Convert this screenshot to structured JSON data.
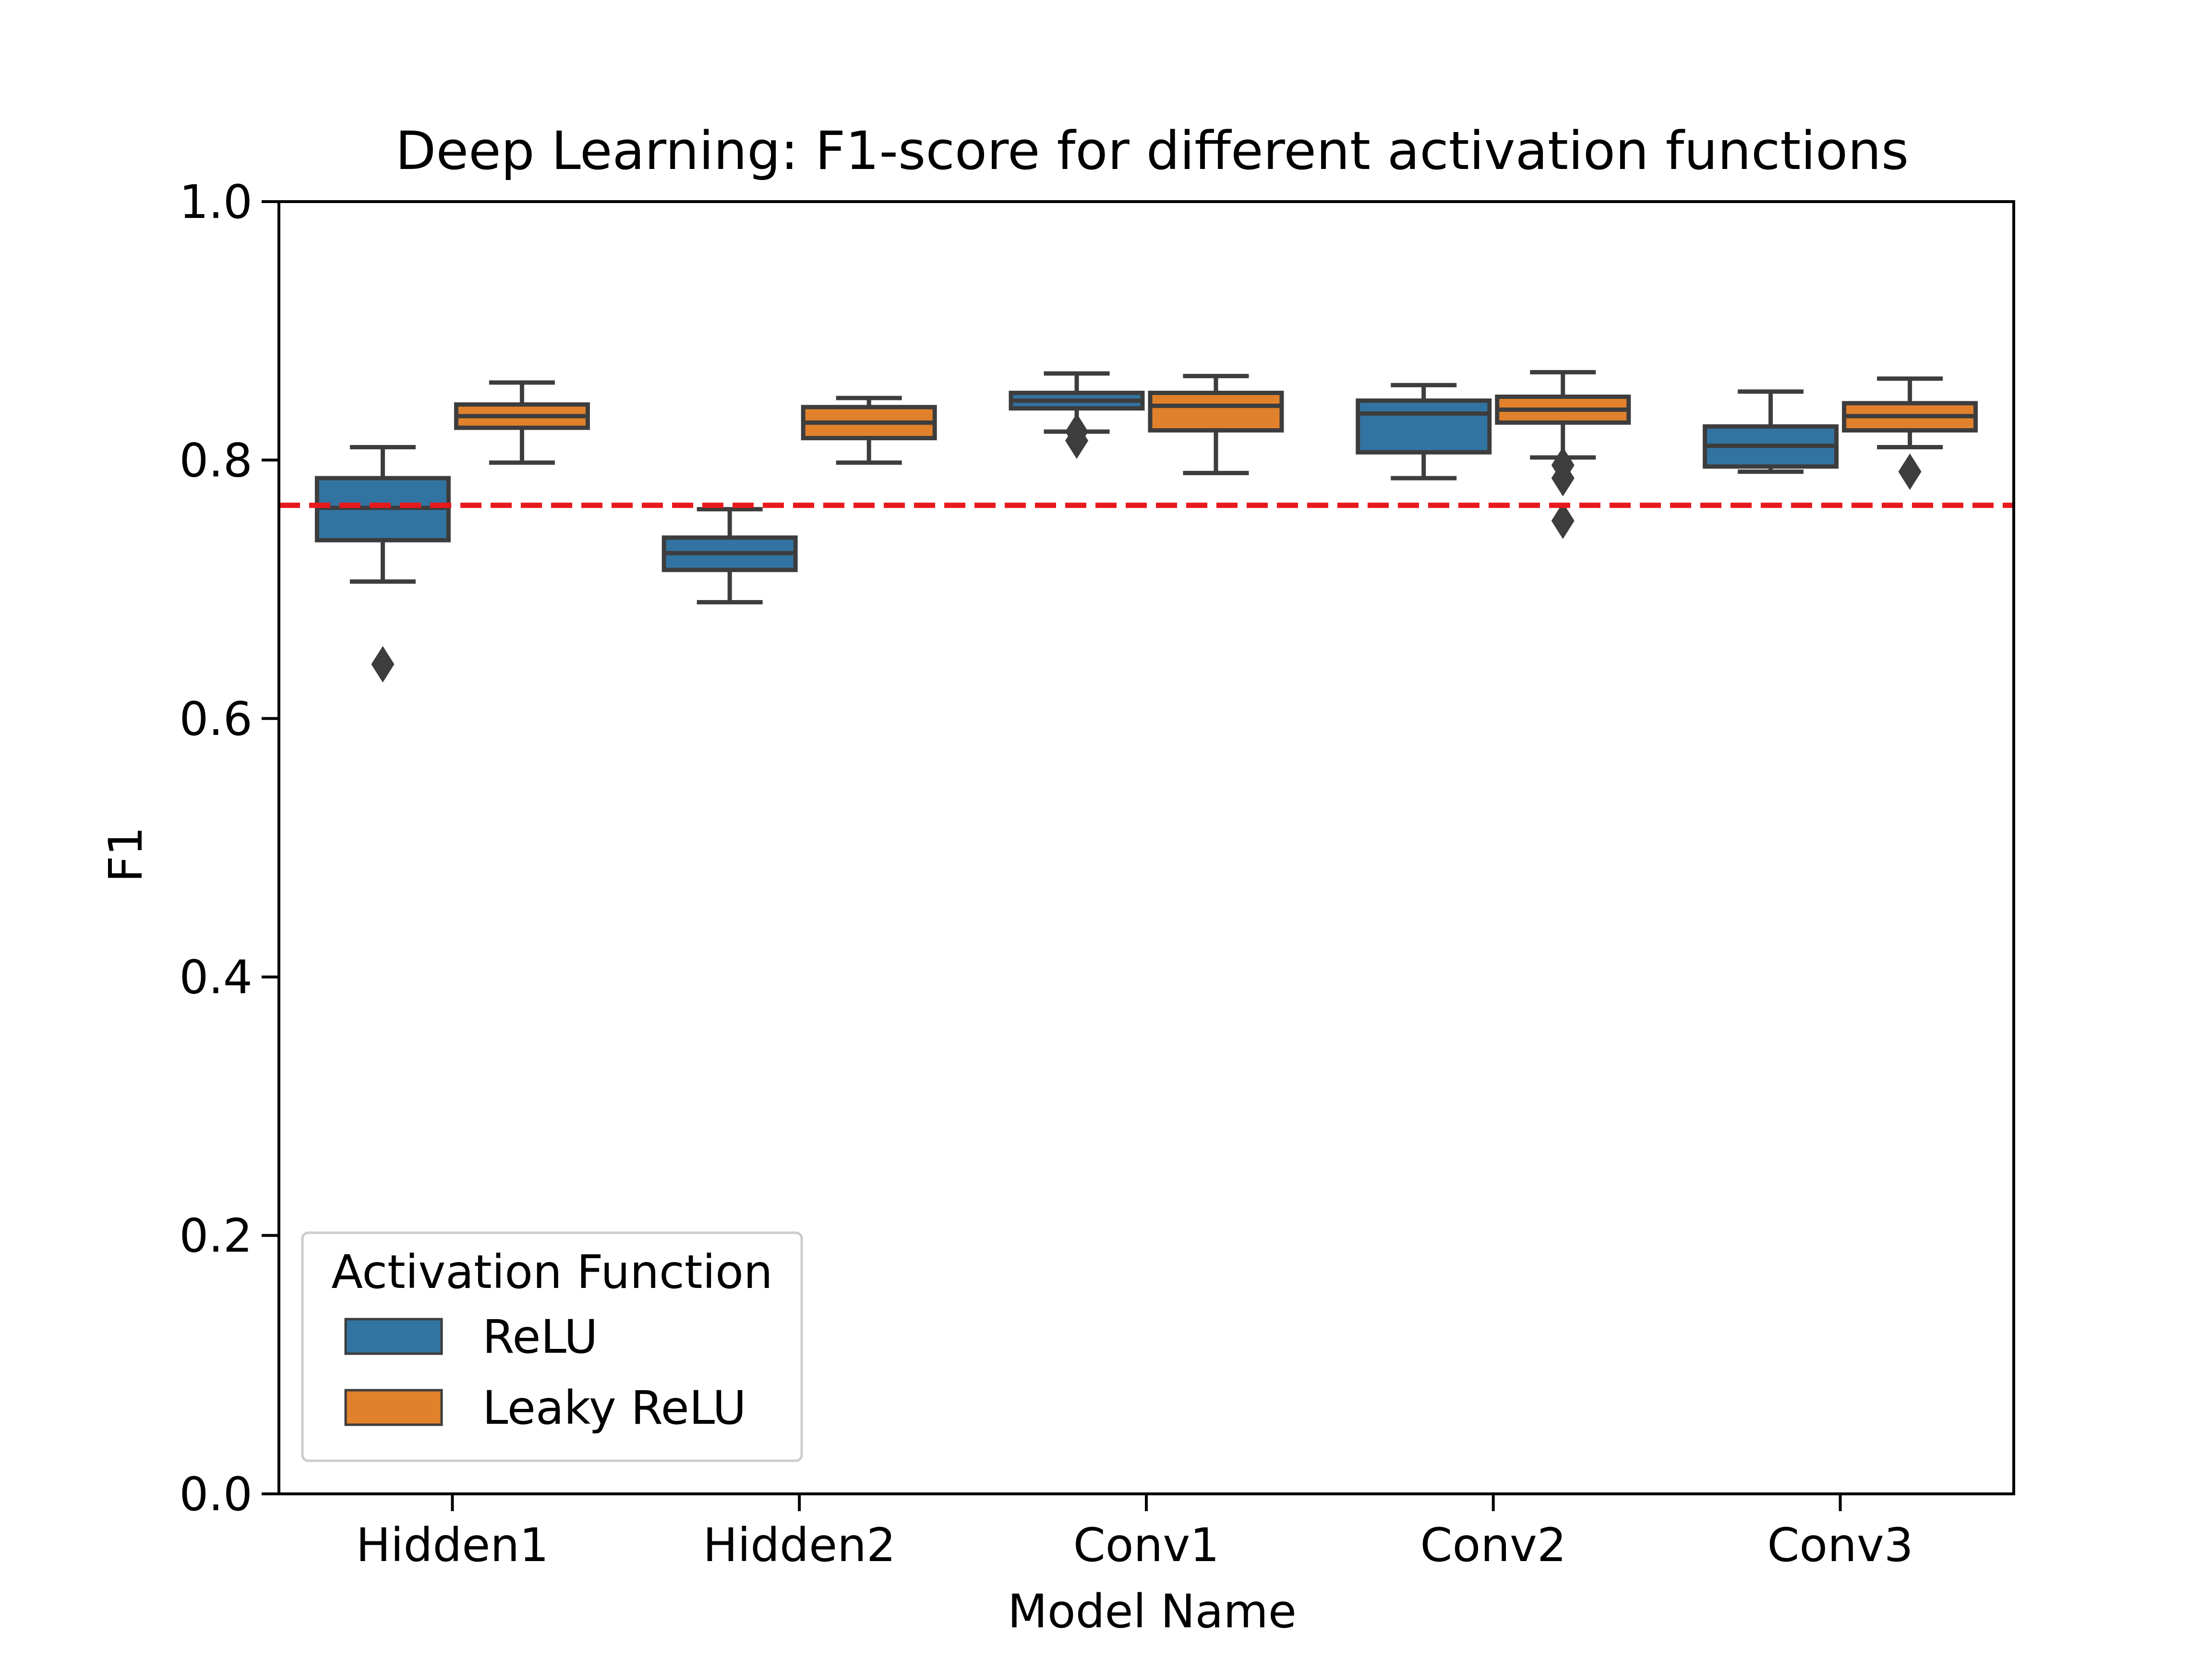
{
  "chart_data": {
    "type": "box",
    "title": "Deep Learning: F1-score for different activation functions",
    "xlabel": "Model Name",
    "ylabel": "F1",
    "ylim": [
      0.0,
      1.0
    ],
    "yticks": [
      "0.0",
      "0.2",
      "0.4",
      "0.6",
      "0.8",
      "1.0"
    ],
    "categories": [
      "Hidden1",
      "Hidden2",
      "Conv1",
      "Conv2",
      "Conv3"
    ],
    "reference_line": {
      "value": 0.765,
      "color": "#e8191d",
      "style": "dashed"
    },
    "legend": {
      "title": "Activation Function",
      "position": "lower-left"
    },
    "series": [
      {
        "name": "ReLU",
        "color": "#3274a1",
        "boxes": [
          {
            "whisker_low": 0.706,
            "q1": 0.738,
            "median": 0.763,
            "q3": 0.786,
            "whisker_high": 0.81,
            "outliers": [
              0.642
            ]
          },
          {
            "whisker_low": 0.69,
            "q1": 0.715,
            "median": 0.728,
            "q3": 0.74,
            "whisker_high": 0.762,
            "outliers": []
          },
          {
            "whisker_low": 0.822,
            "q1": 0.84,
            "median": 0.846,
            "q3": 0.852,
            "whisker_high": 0.867,
            "outliers": [
              0.815,
              0.822
            ]
          },
          {
            "whisker_low": 0.786,
            "q1": 0.806,
            "median": 0.836,
            "q3": 0.846,
            "whisker_high": 0.858,
            "outliers": []
          },
          {
            "whisker_low": 0.791,
            "q1": 0.795,
            "median": 0.811,
            "q3": 0.826,
            "whisker_high": 0.853,
            "outliers": []
          }
        ]
      },
      {
        "name": "Leaky ReLU",
        "color": "#e1812c",
        "boxes": [
          {
            "whisker_low": 0.798,
            "q1": 0.825,
            "median": 0.834,
            "q3": 0.843,
            "whisker_high": 0.86,
            "outliers": []
          },
          {
            "whisker_low": 0.798,
            "q1": 0.817,
            "median": 0.829,
            "q3": 0.841,
            "whisker_high": 0.848,
            "outliers": []
          },
          {
            "whisker_low": 0.79,
            "q1": 0.823,
            "median": 0.842,
            "q3": 0.852,
            "whisker_high": 0.865,
            "outliers": []
          },
          {
            "whisker_low": 0.802,
            "q1": 0.829,
            "median": 0.839,
            "q3": 0.849,
            "whisker_high": 0.868,
            "outliers": [
              0.796,
              0.786,
              0.753
            ]
          },
          {
            "whisker_low": 0.81,
            "q1": 0.823,
            "median": 0.834,
            "q3": 0.844,
            "whisker_high": 0.863,
            "outliers": [
              0.791
            ]
          }
        ]
      }
    ]
  }
}
